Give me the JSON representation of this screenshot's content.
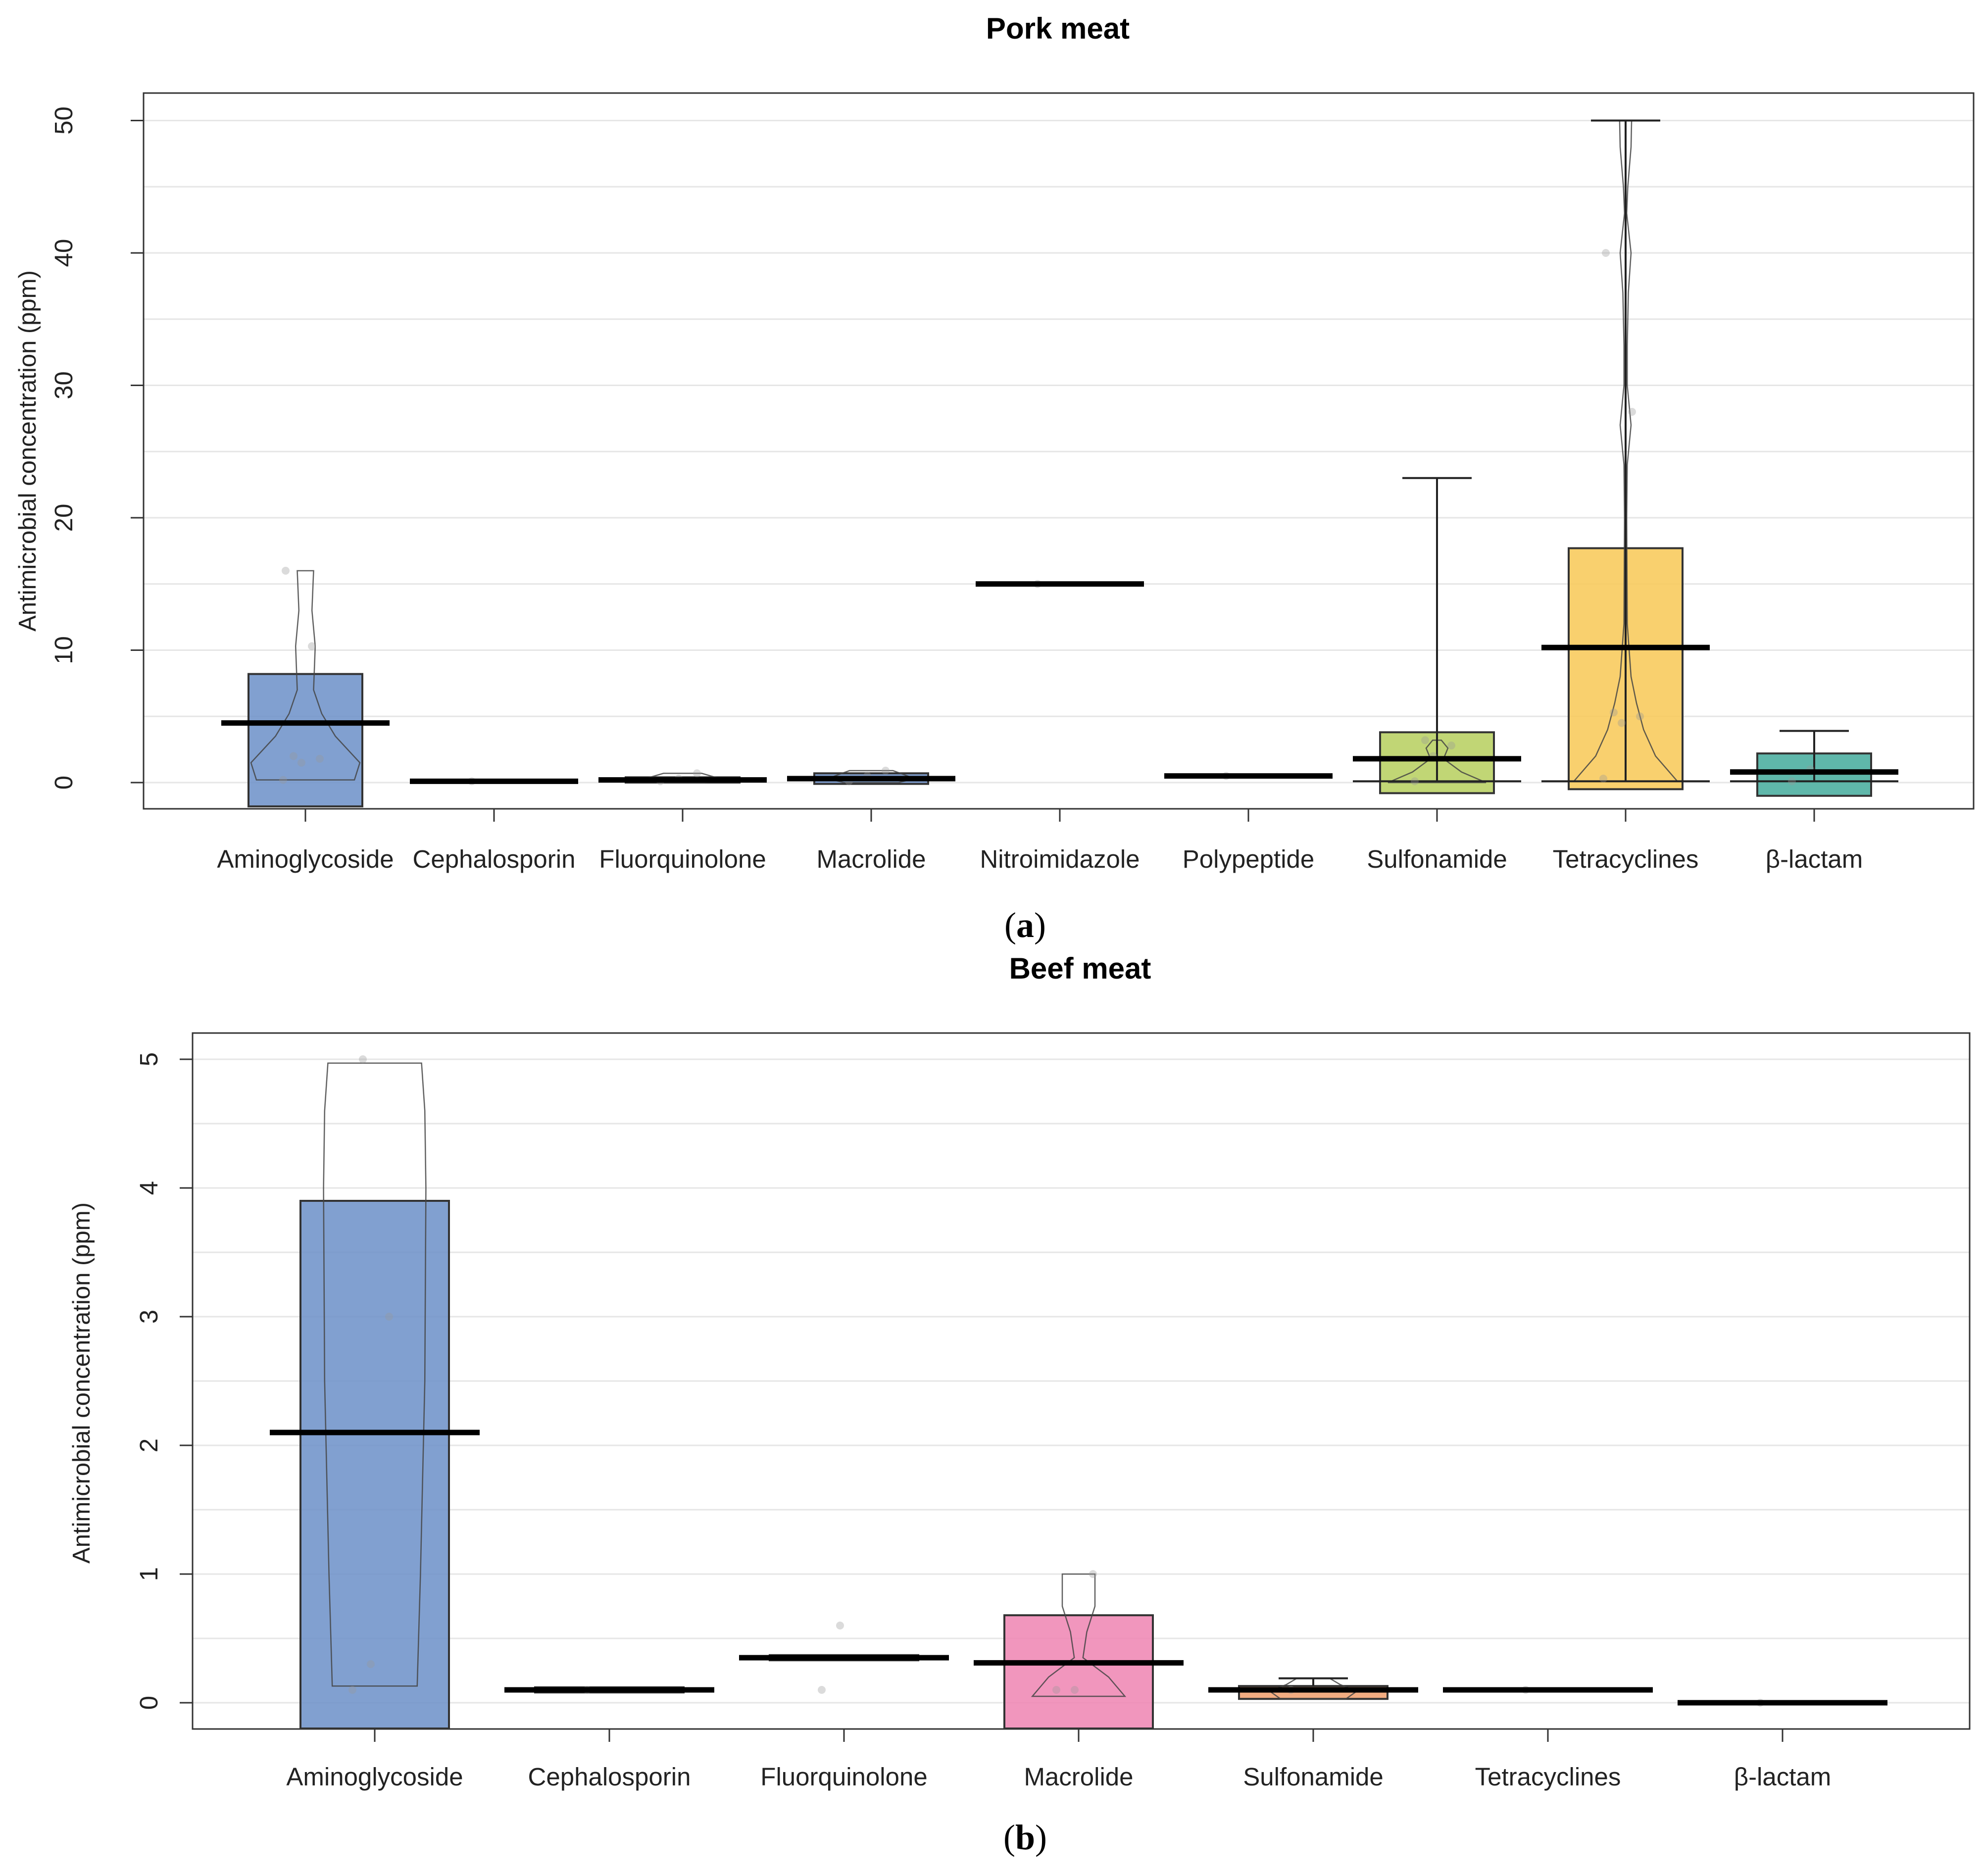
{
  "chart_data": [
    {
      "type": "box",
      "panel_label": "a",
      "title": "Pork meat",
      "xlabel": "",
      "ylabel": "Antimicrobial concentration (ppm)",
      "ylim": [
        -2,
        52
      ],
      "yticks": [
        0,
        10,
        20,
        30,
        40,
        50
      ],
      "grid": true,
      "categories": [
        "Aminoglycoside",
        "Cephalosporin",
        "Fluorquinolone",
        "Macrolide",
        "Nitroimidazole",
        "Polypeptide",
        "Sulfonamide",
        "Tetracyclines",
        "β-lactam"
      ],
      "colors": [
        "#6f93c9",
        "#6f93c9",
        "#6f93c9",
        "#6f93c9",
        "#6f93c9",
        "#6f93c9",
        "#b8d062",
        "#f8c95a",
        "#49ad9e"
      ],
      "series": [
        {
          "name": "Aminoglycoside",
          "mean": 4.5,
          "box_low": -1.8,
          "box_high": 8.2,
          "points": [
            0.2,
            1.5,
            1.8,
            2.0,
            10.3,
            16.0
          ],
          "violin": [
            [
              0.2,
              0.9
            ],
            [
              1.5,
              1.0
            ],
            [
              3.5,
              0.55
            ],
            [
              5.2,
              0.3
            ],
            [
              7.0,
              0.15
            ],
            [
              10.3,
              0.18
            ],
            [
              13.0,
              0.12
            ],
            [
              16.0,
              0.15
            ]
          ]
        },
        {
          "name": "Cephalosporin",
          "mean": 0.1,
          "box_low": 0.05,
          "box_high": 0.15,
          "points": [
            0.1
          ],
          "violin": []
        },
        {
          "name": "Fluorquinolone",
          "mean": 0.2,
          "box_low": 0.0,
          "box_high": 0.4,
          "points": [
            0.1,
            0.3,
            0.7
          ],
          "violin": [
            [
              0.0,
              0.4
            ],
            [
              0.2,
              0.8
            ],
            [
              0.4,
              0.6
            ],
            [
              0.7,
              0.35
            ]
          ]
        },
        {
          "name": "Macrolide",
          "mean": 0.3,
          "box_low": -0.1,
          "box_high": 0.7,
          "points": [
            0.1,
            0.5,
            0.9
          ],
          "violin": [
            [
              0.0,
              0.5
            ],
            [
              0.3,
              0.8
            ],
            [
              0.6,
              0.6
            ],
            [
              0.9,
              0.4
            ]
          ]
        },
        {
          "name": "Nitroimidazole",
          "mean": 15.0,
          "box_low": 15.0,
          "box_high": 15.0,
          "points": [
            15.0
          ],
          "violin": []
        },
        {
          "name": "Polypeptide",
          "mean": 0.5,
          "box_low": 0.45,
          "box_high": 0.55,
          "points": [
            0.5
          ],
          "violin": []
        },
        {
          "name": "Sulfonamide",
          "mean": 1.8,
          "box_low": -0.8,
          "box_high": 3.8,
          "points": [
            0.1,
            2.0,
            2.8,
            3.2
          ],
          "median": 0.1,
          "whisker_low": 0.1,
          "whisker_high": 23.0,
          "violin": [
            [
              0.0,
              0.9
            ],
            [
              0.8,
              0.45
            ],
            [
              1.8,
              0.12
            ],
            [
              2.6,
              0.2
            ],
            [
              3.2,
              0.08
            ]
          ]
        },
        {
          "name": "Tetracyclines",
          "mean": 10.2,
          "box_low": -0.5,
          "box_high": 17.7,
          "points": [
            0.3,
            4.5,
            5.0,
            5.3,
            28.0,
            40.0
          ],
          "median": 0.1,
          "whisker_low": 0.1,
          "whisker_high": 50.0,
          "violin": [
            [
              0.1,
              0.95
            ],
            [
              2.0,
              0.55
            ],
            [
              4.0,
              0.33
            ],
            [
              6.0,
              0.2
            ],
            [
              8.0,
              0.1
            ],
            [
              12.0,
              0.03
            ],
            [
              20.0,
              0.02
            ],
            [
              24.0,
              0.03
            ],
            [
              27.0,
              0.1
            ],
            [
              30.0,
              0.03
            ],
            [
              33.0,
              0.03
            ],
            [
              37.0,
              0.05
            ],
            [
              40.0,
              0.1
            ],
            [
              43.0,
              0.02
            ],
            [
              45.0,
              0.04
            ],
            [
              48.0,
              0.1
            ],
            [
              50.0,
              0.11
            ]
          ]
        },
        {
          "name": "β-lactam",
          "mean": 0.8,
          "box_low": -1.0,
          "box_high": 2.2,
          "points": [
            0.1,
            1.0
          ],
          "median": 0.1,
          "whisker_low": 0.1,
          "whisker_high": 3.9,
          "violin": []
        }
      ]
    },
    {
      "type": "box",
      "panel_label": "b",
      "title": "Beef meat",
      "xlabel": "",
      "ylabel": "Antimicrobial  concentration (ppm)",
      "ylim": [
        -0.2,
        5.3
      ],
      "yticks": [
        0,
        1,
        2,
        3,
        4,
        5
      ],
      "grid": true,
      "categories": [
        "Aminoglycoside",
        "Cephalosporin",
        "Fluorquinolone",
        "Macrolide",
        "Sulfonamide",
        "Tetracyclines",
        "β-lactam"
      ],
      "colors": [
        "#6f93c9",
        "#6f93c9",
        "#6f93c9",
        "#ef88b4",
        "#f0a070",
        "#6f93c9",
        "#6f93c9"
      ],
      "series": [
        {
          "name": "Aminoglycoside",
          "mean": 2.1,
          "box_low": -0.2,
          "box_high": 3.9,
          "points": [
            0.1,
            0.3,
            3.0,
            5.0
          ],
          "violin": [
            [
              0.13,
              0.78
            ],
            [
              1.0,
              0.84
            ],
            [
              2.5,
              0.92
            ],
            [
              4.0,
              0.94
            ],
            [
              4.6,
              0.92
            ],
            [
              4.97,
              0.86
            ]
          ]
        },
        {
          "name": "Cephalosporin",
          "mean": 0.1,
          "box_low": 0.08,
          "box_high": 0.12,
          "points": [
            0.1
          ],
          "violin": []
        },
        {
          "name": "Fluorquinolone",
          "mean": 0.35,
          "box_low": 0.33,
          "box_high": 0.37,
          "points": [
            0.1,
            0.6
          ],
          "violin": []
        },
        {
          "name": "Macrolide",
          "mean": 0.31,
          "box_low": -0.2,
          "box_high": 0.68,
          "points": [
            0.1,
            0.1,
            1.0
          ],
          "violin": [
            [
              0.05,
              0.85
            ],
            [
              0.2,
              0.55
            ],
            [
              0.35,
              0.08
            ],
            [
              0.55,
              0.15
            ],
            [
              0.75,
              0.3
            ],
            [
              1.0,
              0.3
            ]
          ]
        },
        {
          "name": "Sulfonamide",
          "mean": 0.1,
          "box_low": 0.03,
          "box_high": 0.13,
          "points": [
            0.1
          ],
          "whisker_high": 0.19,
          "violin": [
            [
              0.03,
              0.6
            ],
            [
              0.09,
              0.8
            ],
            [
              0.14,
              0.5
            ],
            [
              0.19,
              0.3
            ]
          ]
        },
        {
          "name": "Tetracyclines",
          "mean": 0.1,
          "box_low": 0.09,
          "box_high": 0.11,
          "points": [
            0.1
          ],
          "violin": []
        },
        {
          "name": "β-lactam",
          "mean": 0.0,
          "box_low": 0.0,
          "box_high": 0.0,
          "points": [
            0.0
          ],
          "violin": []
        }
      ]
    }
  ]
}
